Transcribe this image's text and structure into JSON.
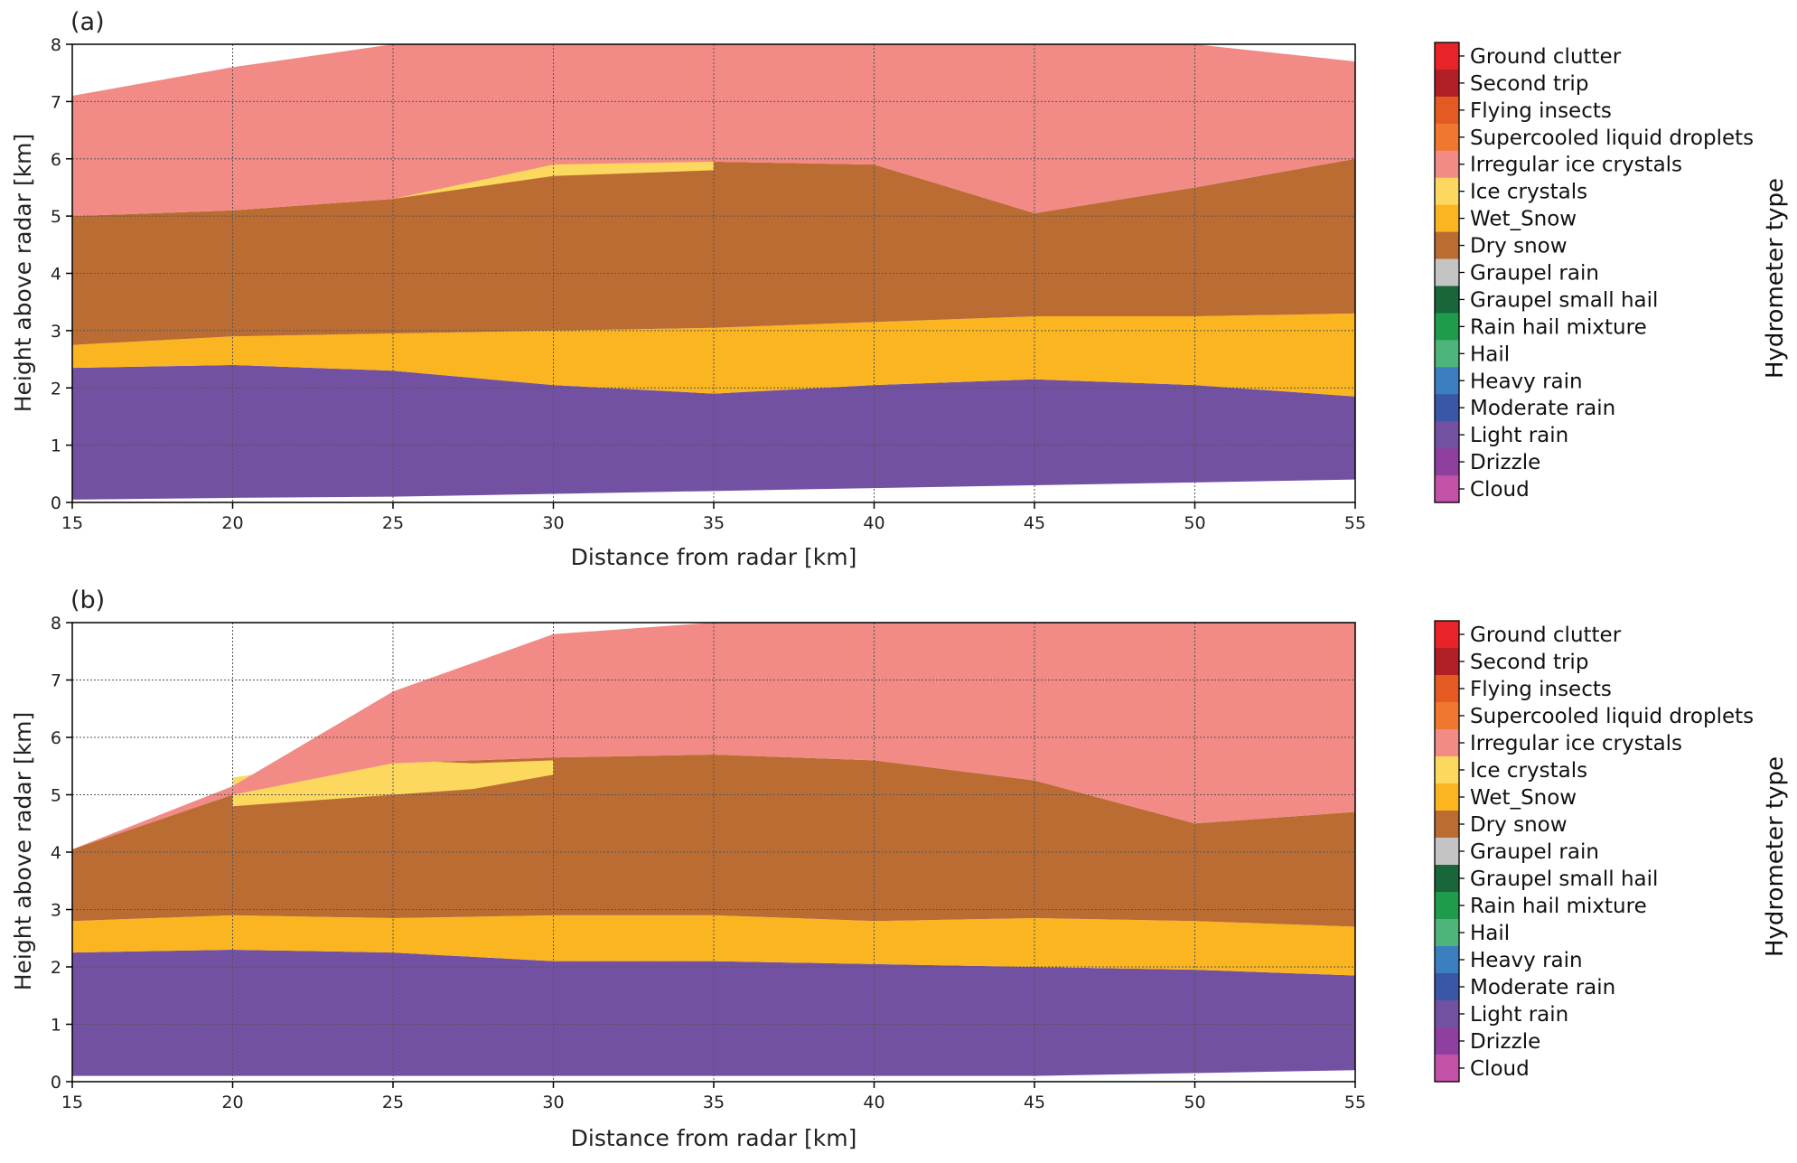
{
  "colors": {
    "Ground clutter": "#e8232a",
    "Second trip": "#b11f26",
    "Flying insects": "#e35a23",
    "Supercooled liquid droplets": "#f0772e",
    "Irregular ice crystals": "#f28a86",
    "Ice crystals": "#fcd95e",
    "Wet_Snow": "#fbb520",
    "Dry snow": "#bb6c33",
    "Graupel rain": "#c4c4c4",
    "Graupel small hail": "#18663a",
    "Rain hail mixture": "#1f9b4c",
    "Hail": "#4db57a",
    "Heavy rain": "#3c7fc0",
    "Moderate rain": "#3a56a6",
    "Light rain": "#7351a2",
    "Drizzle": "#8f3f9f",
    "Cloud": "#c152a8"
  },
  "chart_data": [
    {
      "type": "heatmap",
      "panel_label": "(a)",
      "xlabel": "Distance from radar [km]",
      "ylabel": "Height above  radar [km]",
      "xlim": [
        15,
        55
      ],
      "ylim": [
        0,
        8
      ],
      "xticks": [
        15,
        20,
        25,
        30,
        35,
        40,
        45,
        50,
        55
      ],
      "yticks": [
        0,
        1,
        2,
        3,
        4,
        5,
        6,
        7,
        8
      ],
      "grid": true,
      "colorbar_title": "Hydrometer type",
      "colorbar_labels": [
        "Ground clutter",
        "Second trip",
        "Flying insects",
        "Supercooled liquid droplets",
        "Irregular ice crystals",
        "Ice crystals",
        "Wet_Snow",
        "Dry snow",
        "Graupel rain",
        "Graupel small hail",
        "Rain hail mixture",
        "Hail",
        "Heavy rain",
        "Moderate rain",
        "Light rain",
        "Drizzle",
        "Cloud"
      ],
      "layers": [
        {
          "class": "Light rain",
          "x": [
            15,
            20,
            25,
            30,
            35,
            40,
            45,
            50,
            55
          ],
          "bottom": [
            0.05,
            0.08,
            0.1,
            0.15,
            0.2,
            0.25,
            0.3,
            0.35,
            0.4
          ],
          "top": [
            2.35,
            2.4,
            2.3,
            2.05,
            1.9,
            2.05,
            2.15,
            2.05,
            1.85
          ]
        },
        {
          "class": "Wet_Snow",
          "x": [
            15,
            20,
            25,
            30,
            35,
            40,
            45,
            50,
            55
          ],
          "bottom": [
            2.35,
            2.4,
            2.3,
            2.05,
            1.9,
            2.05,
            2.15,
            2.05,
            1.85
          ],
          "top": [
            2.75,
            2.9,
            2.95,
            3.0,
            3.05,
            3.15,
            3.25,
            3.25,
            3.3
          ]
        },
        {
          "class": "Dry snow",
          "x": [
            15,
            20,
            25,
            30,
            35,
            40,
            45,
            50,
            55
          ],
          "bottom": [
            2.75,
            2.9,
            2.95,
            3.0,
            3.05,
            3.15,
            3.25,
            3.25,
            3.3
          ],
          "top": [
            5.0,
            5.1,
            5.3,
            5.9,
            5.95,
            5.9,
            5.05,
            5.5,
            6.0
          ]
        },
        {
          "class": "Ice crystals",
          "x": [
            15,
            20,
            25,
            30,
            35
          ],
          "bottom": [
            5.0,
            5.1,
            5.3,
            5.7,
            5.8
          ],
          "top": [
            5.1,
            5.45,
            5.9,
            6.0,
            6.0
          ]
        },
        {
          "class": "Irregular ice crystals",
          "x": [
            15,
            20,
            25,
            30,
            35,
            40,
            45,
            50,
            55
          ],
          "bottom": [
            5.0,
            5.1,
            5.3,
            5.9,
            5.95,
            5.9,
            5.05,
            5.5,
            6.0
          ],
          "top": [
            7.1,
            7.6,
            8.0,
            8.0,
            8.0,
            8.0,
            8.0,
            8.0,
            7.7
          ]
        }
      ]
    },
    {
      "type": "heatmap",
      "panel_label": "(b)",
      "xlabel": "Distance from radar [km]",
      "ylabel": "Height above  radar [km]",
      "xlim": [
        15,
        55
      ],
      "ylim": [
        0,
        8
      ],
      "xticks": [
        15,
        20,
        25,
        30,
        35,
        40,
        45,
        50,
        55
      ],
      "yticks": [
        0,
        1,
        2,
        3,
        4,
        5,
        6,
        7,
        8
      ],
      "grid": true,
      "colorbar_title": "Hydrometer type",
      "colorbar_labels": [
        "Ground clutter",
        "Second trip",
        "Flying insects",
        "Supercooled liquid droplets",
        "Irregular ice crystals",
        "Ice crystals",
        "Wet_Snow",
        "Dry snow",
        "Graupel rain",
        "Graupel small hail",
        "Rain hail mixture",
        "Hail",
        "Heavy rain",
        "Moderate rain",
        "Light rain",
        "Drizzle",
        "Cloud"
      ],
      "layers": [
        {
          "class": "Light rain",
          "x": [
            15,
            20,
            25,
            30,
            35,
            40,
            45,
            50,
            55
          ],
          "bottom": [
            0.1,
            0.1,
            0.1,
            0.1,
            0.1,
            0.1,
            0.1,
            0.15,
            0.2
          ],
          "top": [
            2.25,
            2.3,
            2.25,
            2.1,
            2.1,
            2.05,
            2.0,
            1.95,
            1.85
          ]
        },
        {
          "class": "Wet_Snow",
          "x": [
            15,
            20,
            25,
            30,
            35,
            40,
            45,
            50,
            55
          ],
          "bottom": [
            2.25,
            2.3,
            2.25,
            2.1,
            2.1,
            2.05,
            2.0,
            1.95,
            1.85
          ],
          "top": [
            2.8,
            2.9,
            2.85,
            2.9,
            2.9,
            2.8,
            2.85,
            2.8,
            2.7
          ]
        },
        {
          "class": "Dry snow",
          "x": [
            15,
            20,
            25,
            30,
            35,
            40,
            45,
            50,
            55
          ],
          "bottom": [
            2.8,
            2.9,
            2.85,
            2.9,
            2.9,
            2.8,
            2.85,
            2.8,
            2.7
          ],
          "top": [
            4.05,
            5.0,
            5.55,
            5.65,
            5.7,
            5.6,
            5.25,
            4.5,
            4.7
          ]
        },
        {
          "class": "Ice crystals",
          "x": [
            20,
            22.5,
            25,
            27.5,
            30
          ],
          "bottom": [
            4.8,
            4.9,
            5.0,
            5.1,
            5.35
          ],
          "top": [
            5.3,
            5.5,
            5.6,
            5.55,
            5.6
          ]
        },
        {
          "class": "Irregular ice crystals",
          "x": [
            15,
            20,
            25,
            30,
            35,
            40,
            45,
            50,
            55
          ],
          "bottom": [
            4.05,
            5.0,
            5.55,
            5.65,
            5.7,
            5.6,
            5.25,
            4.5,
            4.7
          ],
          "top": [
            4.05,
            5.15,
            6.8,
            7.8,
            8.0,
            8.0,
            8.0,
            8.0,
            8.0
          ]
        }
      ]
    }
  ]
}
